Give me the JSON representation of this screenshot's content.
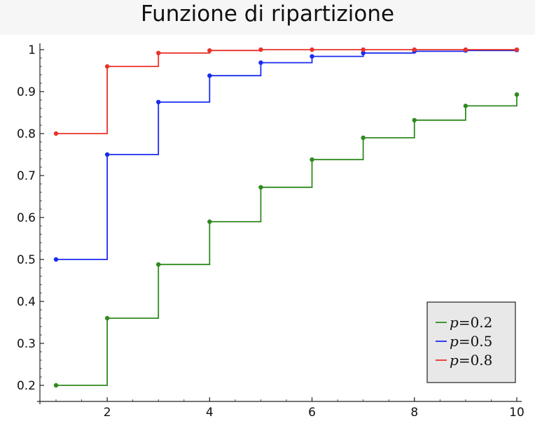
{
  "chart_data": {
    "type": "line",
    "step": true,
    "title": "Funzione di ripartizione",
    "xlabel": "",
    "ylabel": "",
    "xlim": [
      1,
      10
    ],
    "ylim": [
      0.2,
      1.0
    ],
    "x_ticks": [
      2,
      4,
      6,
      8,
      10
    ],
    "y_ticks": [
      0.2,
      0.3,
      0.4,
      0.5,
      0.6,
      0.7,
      0.8,
      0.9,
      1
    ],
    "y_tick_labels": [
      "0.2",
      "0.3",
      "0.4",
      "0.5",
      "0.6",
      "0.7",
      "0.8",
      "0.9",
      "1"
    ],
    "grid": false,
    "legend_position": "bottom-right",
    "x": [
      1,
      2,
      3,
      4,
      5,
      6,
      7,
      8,
      9,
      10
    ],
    "series": [
      {
        "name": "p=0.2",
        "legend_var": "p",
        "legend_value": "=0.2",
        "color": "#2f8a1f",
        "values": [
          0.2,
          0.36,
          0.488,
          0.59,
          0.672,
          0.738,
          0.79,
          0.832,
          0.866,
          0.893
        ]
      },
      {
        "name": "p=0.5",
        "legend_var": "p",
        "legend_value": "=0.5",
        "color": "#1a2bf0",
        "values": [
          0.5,
          0.75,
          0.875,
          0.938,
          0.969,
          0.984,
          0.992,
          0.996,
          0.998,
          0.999
        ]
      },
      {
        "name": "p=0.8",
        "legend_var": "p",
        "legend_value": "=0.8",
        "color": "#e8332a",
        "values": [
          0.8,
          0.96,
          0.992,
          0.998,
          1.0,
          1.0,
          1.0,
          1.0,
          1.0,
          1.0
        ]
      }
    ]
  }
}
